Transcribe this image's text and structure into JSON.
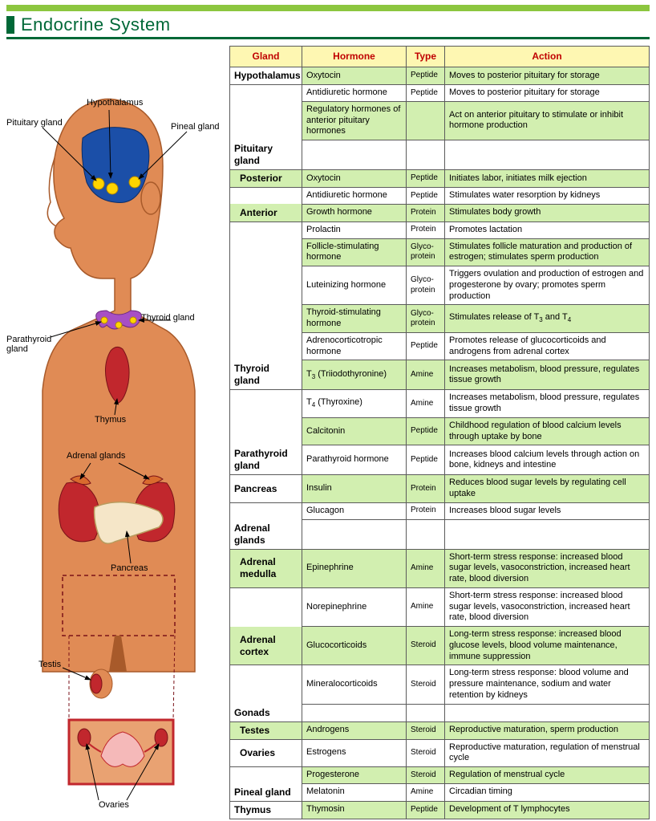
{
  "title": "Endocrine System",
  "headers": {
    "gland": "Gland",
    "hormone": "Hormone",
    "type": "Type",
    "action": "Action"
  },
  "diagram_labels": {
    "hypothalamus": "Hypothalamus",
    "pituitary": "Pituitary gland",
    "pineal": "Pineal gland",
    "thyroid": "Thyroid gland",
    "parathyroid": "Parathyroid\ngland",
    "thymus": "Thymus",
    "adrenal": "Adrenal glands",
    "pancreas": "Pancreas",
    "testis": "Testis",
    "ovaries": "Ovaries"
  },
  "rows": [
    {
      "class": "green",
      "gland": "Hypothalamus",
      "hormone": "Oxytocin",
      "type": "Peptide",
      "action": "Moves to posterior pituitary for storage"
    },
    {
      "class": "white",
      "gland": "",
      "hormone": "Antidiuretic hormone",
      "type": "Peptide",
      "action": "Moves to posterior pituitary for storage"
    },
    {
      "class": "green",
      "gland": "",
      "hormone": "Regulatory hormones of anterior pituitary hormones",
      "type": "",
      "action": "Act on anterior pituitary to stimulate or inhibit hormone production"
    },
    {
      "class": "white",
      "gland": "Pituitary gland",
      "hormone": "",
      "type": "",
      "action": ""
    },
    {
      "class": "green",
      "sub": true,
      "gland": "Posterior",
      "hormone": "Oxytocin",
      "type": "Peptide",
      "action": "Initiates labor, initiates milk ejection"
    },
    {
      "class": "white",
      "gland": "",
      "hormone": "Antidiuretic hormone",
      "type": "Peptide",
      "action": "Stimulates water resorption by kidneys"
    },
    {
      "class": "green",
      "sub": true,
      "gland": "Anterior",
      "hormone": "Growth hormone",
      "type": "Protein",
      "action": "Stimulates body growth"
    },
    {
      "class": "white",
      "gland": "",
      "hormone": "Prolactin",
      "type": "Protein",
      "action": "Promotes lactation"
    },
    {
      "class": "green",
      "gland": "",
      "hormone": "Follicle-stimulating hormone",
      "type": "Glyco-protein",
      "action": "Stimulates follicle maturation and production of estrogen; stimulates sperm production"
    },
    {
      "class": "white",
      "gland": "",
      "hormone": "Luteinizing hormone",
      "type": "Glyco-protein",
      "action": "Triggers ovulation and production of estrogen and progesterone by ovary; promotes sperm production"
    },
    {
      "class": "green",
      "gland": "",
      "hormone": "Thyroid-stimulating hormone",
      "type": "Glyco-protein",
      "action_html": "Stimulates release of T<sub>3</sub> and T<sub>4</sub>"
    },
    {
      "class": "white",
      "gland": "",
      "hormone": "Adrenocorticotropic hormone",
      "type": "Peptide",
      "action": "Promotes release of glucocorticoids and androgens from adrenal cortex"
    },
    {
      "class": "green",
      "gland": "Thyroid gland",
      "hormone_html": "T<sub>3</sub> (Triiodothyronine)",
      "type": "Amine",
      "action": "Increases metabolism, blood pressure, regulates tissue growth"
    },
    {
      "class": "white",
      "gland": "",
      "hormone_html": "T<sub>4</sub> (Thyroxine)",
      "type": "Amine",
      "action": "Increases metabolism, blood pressure, regulates tissue growth"
    },
    {
      "class": "green",
      "gland": "",
      "hormone": "Calcitonin",
      "type": "Peptide",
      "action": "Childhood regulation of blood calcium levels through uptake by bone"
    },
    {
      "class": "white",
      "gland": "Parathyroid gland",
      "hormone": "Parathyroid hormone",
      "type": "Peptide",
      "action": "Increases blood calcium levels through action on bone, kidneys and intestine"
    },
    {
      "class": "green",
      "gland": "Pancreas",
      "hormone": "Insulin",
      "type": "Protein",
      "action": "Reduces blood sugar levels by regulating cell uptake"
    },
    {
      "class": "white",
      "gland": "",
      "hormone": "Glucagon",
      "type": "Protein",
      "action": "Increases blood sugar levels"
    },
    {
      "class": "white",
      "gland": "Adrenal glands",
      "hormone": "",
      "type": "",
      "action": ""
    },
    {
      "class": "green",
      "sub": true,
      "gland": "Adrenal medulla",
      "hormone": "Epinephrine",
      "type": "Amine",
      "action": "Short-term stress response: increased blood sugar levels, vasoconstriction, increased heart rate, blood diversion"
    },
    {
      "class": "white",
      "gland": "",
      "hormone": "Norepinephrine",
      "type": "Amine",
      "action": "Short-term stress response: increased blood sugar levels, vasoconstriction, increased heart rate, blood diversion"
    },
    {
      "class": "green",
      "sub": true,
      "gland": "Adrenal cortex",
      "hormone": "Glucocorticoids",
      "type": "Steroid",
      "action": "Long-term stress response: increased blood glucose levels, blood volume maintenance, immune suppression"
    },
    {
      "class": "white",
      "gland": "",
      "hormone": "Mineralocorticoids",
      "type": "Steroid",
      "action": "Long-term stress response: blood volume  and pressure maintenance, sodium and water retention by kidneys"
    },
    {
      "class": "white",
      "gland": "Gonads",
      "hormone": "",
      "type": "",
      "action": ""
    },
    {
      "class": "green",
      "sub": true,
      "gland": "Testes",
      "hormone": "Androgens",
      "type": "Steroid",
      "action": "Reproductive maturation, sperm production"
    },
    {
      "class": "white",
      "sub": true,
      "gland": "Ovaries",
      "hormone": "Estrogens",
      "type": "Steroid",
      "action": "Reproductive maturation, regulation of menstrual cycle"
    },
    {
      "class": "green",
      "gland": "",
      "hormone": "Progesterone",
      "type": "Steroid",
      "action": "Regulation of menstrual cycle"
    },
    {
      "class": "white",
      "gland": "Pineal gland",
      "hormone": "Melatonin",
      "type": "Amine",
      "action": "Circadian timing"
    },
    {
      "class": "green",
      "gland": "Thymus",
      "hormone": "Thymosin",
      "type": "Peptide",
      "action": "Development of T lymphocytes"
    }
  ],
  "colors": {
    "accent_green": "#8cc63f",
    "dark_green": "#006837",
    "header_bg": "#fef7b2",
    "header_text": "#c00000",
    "row_green": "#d2efb0",
    "skin": "#e08b55",
    "skin_dark": "#a85a2a",
    "brain_blue": "#1b4fa8",
    "yellow": "#ffd400",
    "purple": "#a74fc4",
    "red": "#c1272d",
    "pancreas_fill": "#f5e6c8"
  }
}
